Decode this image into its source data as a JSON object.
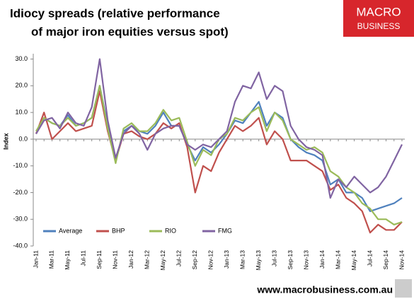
{
  "chart_data": {
    "type": "line",
    "title": "Idiocy spreads (relative performance",
    "subtitle": "of major iron equities versus spot)",
    "brand_top": "MACRO",
    "brand_bottom": "BUSINESS",
    "y_label": "Index",
    "footer": "www.macrobusiness.com.au",
    "categories": [
      "Jan-11",
      null,
      "Mar-11",
      null,
      "May-11",
      null,
      "Jul-11",
      null,
      "Sep-11",
      null,
      "Nov-11",
      null,
      "Jan-12",
      null,
      "Mar-12",
      null,
      "May-12",
      null,
      "Jul-12",
      null,
      "Sep-12",
      null,
      "Nov-12",
      null,
      "Jan-13",
      null,
      "Mar-13",
      null,
      "May-13",
      null,
      "Jul-13",
      null,
      "Sep-13",
      null,
      "Nov-13",
      null,
      "Jan-14",
      null,
      "Mar-14",
      null,
      "May-14",
      null,
      "Jul-14",
      null,
      "Sep-14",
      null,
      "Nov-14"
    ],
    "series": [
      {
        "name": "Average",
        "color": "#4f81bd",
        "values": [
          2,
          8,
          6,
          5,
          9,
          5,
          6,
          8,
          20,
          5,
          -8,
          3,
          5,
          3,
          2,
          5,
          10,
          5,
          5,
          -2,
          -8,
          -3,
          -5,
          -2,
          2,
          7,
          6,
          10,
          14,
          5,
          10,
          8,
          0,
          -3,
          -5,
          -6,
          -8,
          -17,
          -15,
          -20,
          -20,
          -22,
          -27,
          -26,
          -25,
          -24,
          -22
        ]
      },
      {
        "name": "BHP",
        "color": "#c0504d",
        "values": [
          2,
          10,
          0,
          3,
          6,
          3,
          4,
          5,
          18,
          3,
          -8,
          2,
          3,
          1,
          0,
          2,
          6,
          4,
          6,
          -3,
          -20,
          -10,
          -12,
          -5,
          0,
          5,
          3,
          5,
          8,
          -2,
          3,
          0,
          -8,
          -8,
          -8,
          -10,
          -12,
          -19,
          -17,
          -22,
          -24,
          -27,
          -35,
          -32,
          -34,
          -34,
          -31
        ]
      },
      {
        "name": "RIO",
        "color": "#9bbb59",
        "values": [
          3,
          8,
          6,
          5,
          8,
          5,
          6,
          8,
          20,
          4,
          -9,
          4,
          6,
          3,
          3,
          6,
          11,
          7,
          8,
          -1,
          -10,
          -4,
          -6,
          0,
          2,
          8,
          7,
          10,
          12,
          3,
          10,
          7,
          0,
          -2,
          -4,
          -3,
          -5,
          -12,
          -14,
          -18,
          -20,
          -24,
          -26,
          -30,
          -30,
          -32,
          -31
        ]
      },
      {
        "name": "FMG",
        "color": "#8064a2",
        "values": [
          2,
          7,
          8,
          4,
          10,
          6,
          5,
          12,
          30,
          7,
          -7,
          2,
          5,
          2,
          -4,
          2,
          4,
          5,
          5,
          -2,
          -4,
          -2,
          -3,
          0,
          3,
          14,
          20,
          19,
          25,
          15,
          20,
          18,
          5,
          0,
          -3,
          -4,
          -6,
          -22,
          -15,
          -18,
          -14,
          -17,
          -20,
          -18,
          -14,
          -8,
          -2
        ]
      }
    ],
    "ylim": [
      -40,
      32
    ],
    "yticks": [
      {
        "value": -40,
        "label": "-40.0"
      },
      {
        "value": -30,
        "label": "-30.0"
      },
      {
        "value": -20,
        "label": "-20.0"
      },
      {
        "value": -10,
        "label": "-10.0"
      },
      {
        "value": 0,
        "label": "0.0"
      },
      {
        "value": 10,
        "label": "10.0"
      },
      {
        "value": 20,
        "label": "20.0"
      },
      {
        "value": 30,
        "label": "30.0"
      }
    ],
    "legend": "bottom-left"
  }
}
